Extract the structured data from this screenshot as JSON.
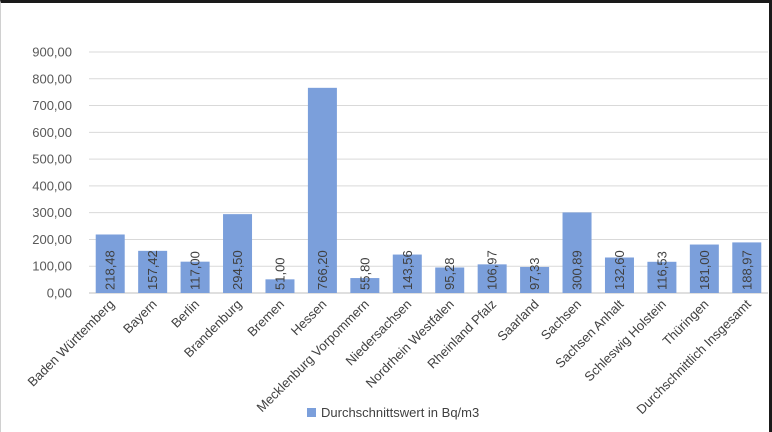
{
  "chart_data": {
    "type": "bar",
    "categories": [
      "Baden Württemberg",
      "Bayern",
      "Berlin",
      "Brandenburg",
      "Bremen",
      "Hessen",
      "Mecklenburg Vorpommern",
      "Niedersachsen",
      "Nordrhein Westfalen",
      "Rheinland Pfalz",
      "Saarland",
      "Sachsen",
      "Sachsen Anhalt",
      "Schleswig Holstein",
      "Thüringen",
      "Durchschnittlich Insgesamt"
    ],
    "series": [
      {
        "name": "Durchschnittswert in Bq/m3",
        "values": [
          218.48,
          157.42,
          117.0,
          294.5,
          51.0,
          766.2,
          55.8,
          143.56,
          95.28,
          106.97,
          97.33,
          300.89,
          132.6,
          116.53,
          181.0,
          188.97
        ],
        "labels": [
          "218,48",
          "157,42",
          "117,00",
          "294,50",
          "51,00",
          "766,20",
          "55,80",
          "143,56",
          "95,28",
          "106,97",
          "97,33",
          "300,89",
          "132,60",
          "116,53",
          "181,00",
          "188,97"
        ]
      }
    ],
    "yticks": [
      "0,00",
      "100,00",
      "200,00",
      "300,00",
      "400,00",
      "500,00",
      "600,00",
      "700,00",
      "800,00",
      "900,00"
    ],
    "ylim": [
      0,
      900
    ],
    "grid": true,
    "legend_position": "bottom",
    "bar_color": "#7b9fdb"
  }
}
